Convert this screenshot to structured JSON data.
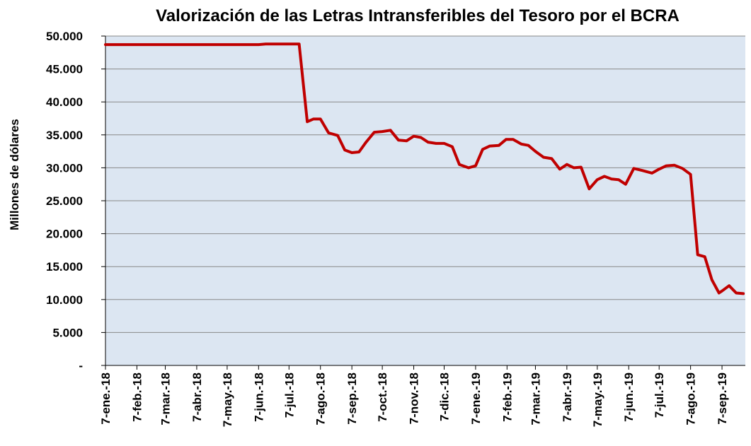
{
  "chart_data": {
    "type": "line",
    "title": "Valorización de las Letras Intransferibles del Tesoro por el BCRA",
    "xlabel": "",
    "ylabel": "Millones  de dólares",
    "ylim": [
      0,
      50000
    ],
    "yticks": [
      {
        "value": 50000,
        "label": "50.000"
      },
      {
        "value": 45000,
        "label": "45.000"
      },
      {
        "value": 40000,
        "label": "40.000"
      },
      {
        "value": 35000,
        "label": "35.000"
      },
      {
        "value": 30000,
        "label": "30.000"
      },
      {
        "value": 25000,
        "label": "25.000"
      },
      {
        "value": 20000,
        "label": "20.000"
      },
      {
        "value": 15000,
        "label": "15.000"
      },
      {
        "value": 10000,
        "label": "10.000"
      },
      {
        "value": 5000,
        "label": "5.000"
      },
      {
        "value": 0,
        "label": "-"
      }
    ],
    "xrange": [
      "2018-01-07",
      "2019-09-30"
    ],
    "xticks": [
      {
        "date": "2018-01-07",
        "label": "7-ene.-18"
      },
      {
        "date": "2018-02-07",
        "label": "7-feb.-18"
      },
      {
        "date": "2018-03-07",
        "label": "7-mar.-18"
      },
      {
        "date": "2018-04-07",
        "label": "7-abr.-18"
      },
      {
        "date": "2018-05-07",
        "label": "7-may.-18"
      },
      {
        "date": "2018-06-07",
        "label": "7-jun.-18"
      },
      {
        "date": "2018-07-07",
        "label": "7-jul.-18"
      },
      {
        "date": "2018-08-07",
        "label": "7-ago.-18"
      },
      {
        "date": "2018-09-07",
        "label": "7-sep.-18"
      },
      {
        "date": "2018-10-07",
        "label": "7-oct.-18"
      },
      {
        "date": "2018-11-07",
        "label": "7-nov.-18"
      },
      {
        "date": "2018-12-07",
        "label": "7-dic.-18"
      },
      {
        "date": "2019-01-07",
        "label": "7-ene.-19"
      },
      {
        "date": "2019-02-07",
        "label": "7-feb.-19"
      },
      {
        "date": "2019-03-07",
        "label": "7-mar.-19"
      },
      {
        "date": "2019-04-07",
        "label": "7-abr.-19"
      },
      {
        "date": "2019-05-07",
        "label": "7-may.-19"
      },
      {
        "date": "2019-06-07",
        "label": "7-jun.-19"
      },
      {
        "date": "2019-07-07",
        "label": "7-jul.-19"
      },
      {
        "date": "2019-08-07",
        "label": "7-ago.-19"
      },
      {
        "date": "2019-09-07",
        "label": "7-sep.-19"
      }
    ],
    "grid": true,
    "colors": {
      "line": "#C00000",
      "plot_background": "#DCE6F2",
      "gridline": "#888888"
    },
    "series": [
      {
        "points": [
          [
            "2018-01-07",
            48700
          ],
          [
            "2018-06-07",
            48700
          ],
          [
            "2018-06-14",
            48800
          ],
          [
            "2018-07-17",
            48800
          ],
          [
            "2018-07-25",
            37000
          ],
          [
            "2018-07-31",
            37400
          ],
          [
            "2018-08-07",
            37400
          ],
          [
            "2018-08-15",
            35300
          ],
          [
            "2018-08-24",
            34900
          ],
          [
            "2018-08-31",
            32700
          ],
          [
            "2018-09-07",
            32300
          ],
          [
            "2018-09-14",
            32400
          ],
          [
            "2018-09-21",
            33900
          ],
          [
            "2018-09-29",
            35400
          ],
          [
            "2018-10-07",
            35500
          ],
          [
            "2018-10-15",
            35700
          ],
          [
            "2018-10-23",
            34200
          ],
          [
            "2018-10-31",
            34100
          ],
          [
            "2018-11-07",
            34800
          ],
          [
            "2018-11-14",
            34600
          ],
          [
            "2018-11-21",
            33900
          ],
          [
            "2018-11-29",
            33700
          ],
          [
            "2018-12-07",
            33700
          ],
          [
            "2018-12-15",
            33200
          ],
          [
            "2018-12-22",
            30500
          ],
          [
            "2018-12-31",
            30000
          ],
          [
            "2019-01-07",
            30300
          ],
          [
            "2019-01-14",
            32800
          ],
          [
            "2019-01-21",
            33300
          ],
          [
            "2019-01-30",
            33400
          ],
          [
            "2019-02-06",
            34300
          ],
          [
            "2019-02-13",
            34300
          ],
          [
            "2019-02-21",
            33600
          ],
          [
            "2019-02-28",
            33400
          ],
          [
            "2019-03-07",
            32500
          ],
          [
            "2019-03-15",
            31600
          ],
          [
            "2019-03-23",
            31400
          ],
          [
            "2019-03-31",
            29800
          ],
          [
            "2019-04-07",
            30500
          ],
          [
            "2019-04-14",
            30000
          ],
          [
            "2019-04-21",
            30100
          ],
          [
            "2019-04-29",
            26800
          ],
          [
            "2019-05-07",
            28200
          ],
          [
            "2019-05-14",
            28700
          ],
          [
            "2019-05-21",
            28300
          ],
          [
            "2019-05-28",
            28200
          ],
          [
            "2019-06-04",
            27500
          ],
          [
            "2019-06-12",
            29900
          ],
          [
            "2019-06-20",
            29600
          ],
          [
            "2019-06-30",
            29200
          ],
          [
            "2019-07-07",
            29800
          ],
          [
            "2019-07-14",
            30300
          ],
          [
            "2019-07-22",
            30400
          ],
          [
            "2019-07-30",
            29900
          ],
          [
            "2019-08-07",
            29000
          ],
          [
            "2019-08-14",
            16800
          ],
          [
            "2019-08-21",
            16500
          ],
          [
            "2019-08-28",
            13000
          ],
          [
            "2019-09-04",
            11000
          ],
          [
            "2019-09-07",
            11300
          ],
          [
            "2019-09-14",
            12100
          ],
          [
            "2019-09-21",
            11000
          ],
          [
            "2019-09-28",
            10900
          ]
        ]
      }
    ]
  }
}
